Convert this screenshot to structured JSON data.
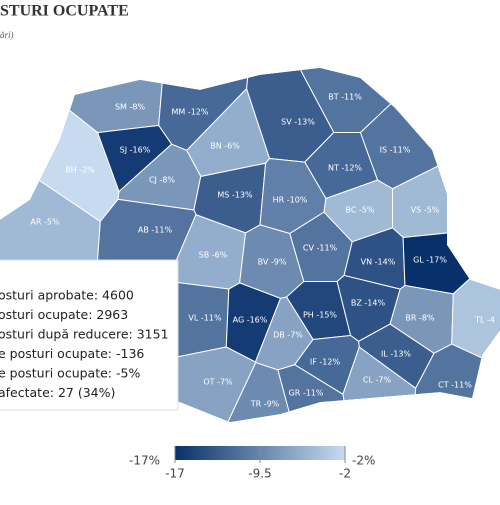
{
  "header": {
    "title": "STURI OCUPATE",
    "subtitle": "ări)"
  },
  "counties": [
    {
      "label": "SM -8%",
      "value": -8
    },
    {
      "label": "MM -12%",
      "value": -12
    },
    {
      "label": "BT -11%",
      "value": -11
    },
    {
      "label": "SJ -16%",
      "value": -16
    },
    {
      "label": "BN -6%",
      "value": -6
    },
    {
      "label": "SV -13%",
      "value": -13
    },
    {
      "label": "BH -2%",
      "value": -2
    },
    {
      "label": "CJ -8%",
      "value": -8
    },
    {
      "label": "NT -12%",
      "value": -12
    },
    {
      "label": "IS -11%",
      "value": -11
    },
    {
      "label": "MS -13%",
      "value": -13
    },
    {
      "label": "HR -10%",
      "value": -10
    },
    {
      "label": "BC -5%",
      "value": -5
    },
    {
      "label": "VS -5%",
      "value": -5
    },
    {
      "label": "AR -5%",
      "value": -5
    },
    {
      "label": "AB -11%",
      "value": -11
    },
    {
      "label": "SB -6%",
      "value": -6
    },
    {
      "label": "CV -11%",
      "value": -11
    },
    {
      "label": "VN -14%",
      "value": -14
    },
    {
      "label": "GL -17%",
      "value": -17
    },
    {
      "label": "BV -9%",
      "value": -9
    },
    {
      "label": "VL -11%",
      "value": -11
    },
    {
      "label": "AG -16%",
      "value": -16
    },
    {
      "label": "PH -15%",
      "value": -15
    },
    {
      "label": "BZ -14%",
      "value": -14
    },
    {
      "label": "BR -8%",
      "value": -8
    },
    {
      "label": "TL -4",
      "value": -4
    },
    {
      "label": "DB -7%",
      "value": -7
    },
    {
      "label": "IF -12%",
      "value": -12
    },
    {
      "label": "IL -13%",
      "value": -13
    },
    {
      "label": "OT -7%",
      "value": -7
    },
    {
      "label": "GR -11%",
      "value": -11
    },
    {
      "label": "CL -7%",
      "value": -7
    },
    {
      "label": "CT -11%",
      "value": -11
    },
    {
      "label": "TR -9%",
      "value": -9
    }
  ],
  "tooltip": {
    "lines": [
      "osturi aprobate: 4600",
      "osturi ocupate: 2963",
      "osturi după reducere: 3151",
      "e posturi ocupate: -136",
      "e posturi ocupate: -5%",
      "afectate: 27 (34%)"
    ]
  },
  "legend": {
    "min_label": "-17%",
    "max_label": "-2%",
    "ticks": [
      -17,
      -9.5,
      -2
    ]
  }
}
